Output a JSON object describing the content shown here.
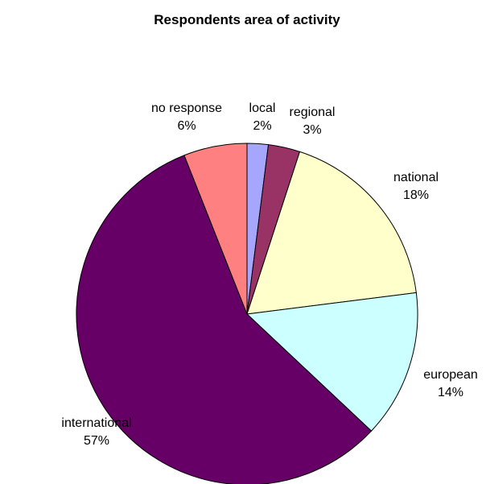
{
  "chart_data": {
    "type": "pie",
    "title": "Respondents area of activity",
    "start_angle_deg": 0,
    "direction": "clockwise",
    "slices": [
      {
        "label": "local",
        "value": 2,
        "value_label": "2%",
        "color": "#a6a6ff"
      },
      {
        "label": "regional",
        "value": 3,
        "value_label": "3%",
        "color": "#993366"
      },
      {
        "label": "national",
        "value": 18,
        "value_label": "18%",
        "color": "#ffffcc"
      },
      {
        "label": "european",
        "value": 14,
        "value_label": "14%",
        "color": "#ccffff"
      },
      {
        "label": "international",
        "value": 57,
        "value_label": "57%",
        "color": "#660066"
      },
      {
        "label": "no response",
        "value": 6,
        "value_label": "6%",
        "color": "#ff8080"
      }
    ]
  }
}
